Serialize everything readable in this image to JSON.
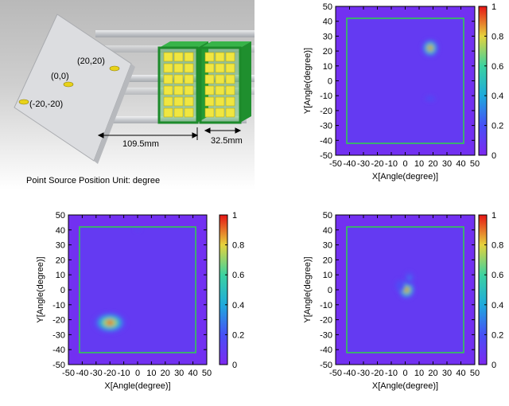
{
  "diagram": {
    "caption": "Point Source Position Unit: degree",
    "source_labels": [
      "(20,20)",
      "(0,0)",
      "(-20,-20)"
    ],
    "dimension_labels": [
      "109.5mm",
      "32.5mm"
    ],
    "colors": {
      "background": "#c9c9c9",
      "plate": "#dcdde0",
      "detector_frame": "#22aa33",
      "crystal": "#f0e640",
      "source": "#e8d21a",
      "rod": "#d4d6da"
    }
  },
  "chart_data": [
    {
      "type": "heatmap",
      "title": "",
      "xlabel": "X[Angle(degree)]",
      "ylabel": "Y[Angle(degree)]",
      "xlim": [
        -50,
        50
      ],
      "ylim": [
        -50,
        50
      ],
      "xticks": [
        "-50",
        "-40",
        "-30",
        "-20",
        "-10",
        "0",
        "10",
        "20",
        "30",
        "40",
        "50"
      ],
      "yticks": [
        "50",
        "40",
        "30",
        "20",
        "10",
        "0",
        "-10",
        "-20",
        "-30",
        "-40",
        "-50"
      ],
      "colorbar_ticks": [
        "1",
        "0.8",
        "0.6",
        "0.4",
        "0.2",
        "0"
      ],
      "colorbar_range": [
        0,
        1
      ],
      "field_of_view": [
        -42,
        42
      ],
      "hotspots": [
        {
          "x": 18,
          "y": 22,
          "intensity": 1.0,
          "sx": 3,
          "sy": 3
        },
        {
          "x": 18,
          "y": -12,
          "intensity": 0.18,
          "sx": 6,
          "sy": 3
        }
      ]
    },
    {
      "type": "heatmap",
      "title": "",
      "xlabel": "X[Angle(degree)]",
      "ylabel": "Y[Angle(degree)]",
      "xlim": [
        -50,
        50
      ],
      "ylim": [
        -50,
        50
      ],
      "xticks": [
        "-50",
        "-40",
        "-30",
        "-20",
        "-10",
        "0",
        "10",
        "20",
        "30",
        "40",
        "50"
      ],
      "yticks": [
        "50",
        "40",
        "30",
        "20",
        "10",
        "0",
        "-10",
        "-20",
        "-30",
        "-40",
        "-50"
      ],
      "colorbar_ticks": [
        "1",
        "0.8",
        "0.6",
        "0.4",
        "0.2",
        "0"
      ],
      "colorbar_range": [
        0,
        1
      ],
      "field_of_view": [
        -42,
        42
      ],
      "hotspots": [
        {
          "x": -20,
          "y": -22,
          "intensity": 1.0,
          "sx": 6,
          "sy": 3.5
        },
        {
          "x": 0,
          "y": 40,
          "intensity": 0.12,
          "sx": 6,
          "sy": 3
        }
      ]
    },
    {
      "type": "heatmap",
      "title": "",
      "xlabel": "X[Angle(degree)]",
      "ylabel": "Y[Angle(degree)]",
      "xlim": [
        -50,
        50
      ],
      "ylim": [
        -50,
        50
      ],
      "xticks": [
        "-50",
        "-40",
        "-30",
        "-20",
        "-10",
        "0",
        "10",
        "20",
        "30",
        "40",
        "50"
      ],
      "yticks": [
        "50",
        "40",
        "30",
        "20",
        "10",
        "0",
        "-10",
        "-20",
        "-30",
        "-40",
        "-50"
      ],
      "colorbar_ticks": [
        "1",
        "0.8",
        "0.6",
        "0.4",
        "0.2",
        "0"
      ],
      "colorbar_range": [
        0,
        1
      ],
      "field_of_view": [
        -42,
        42
      ],
      "hotspots": [
        {
          "x": 1,
          "y": 0,
          "intensity": 1.0,
          "sx": 3,
          "sy": 3
        },
        {
          "x": 3,
          "y": 8,
          "intensity": 0.35,
          "sx": 2.5,
          "sy": 3
        },
        {
          "x": -4,
          "y": 3,
          "intensity": 0.2,
          "sx": 4,
          "sy": 5
        }
      ]
    }
  ]
}
